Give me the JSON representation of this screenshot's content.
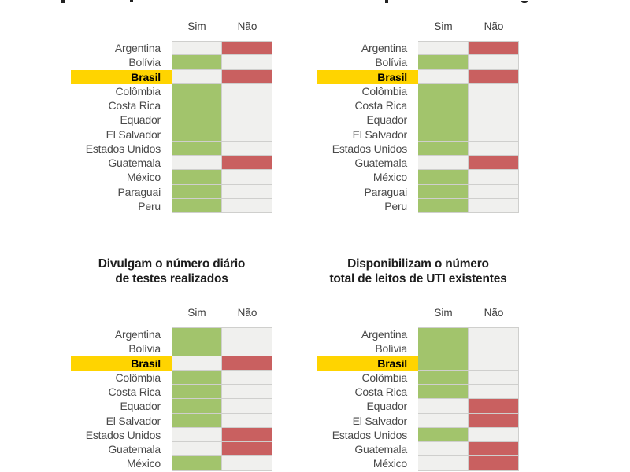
{
  "colors": {
    "yes_green": "#a2c46c",
    "no_red": "#c96060",
    "empty_cell": "#f0f0ee",
    "highlight_yellow": "#ffd400",
    "grid_line": "#cfcfcd",
    "label_text": "#4a4a4a",
    "title_text": "#1d1d1d"
  },
  "col_headers": {
    "yes": "Sim",
    "no": "Não"
  },
  "highlight_country": "Brasil",
  "panels": [
    {
      "id": "top-left",
      "title_lines": [],
      "title_truncated": true,
      "rows": [
        {
          "label": "Argentina",
          "value": "nao"
        },
        {
          "label": "Bolívia",
          "value": "sim"
        },
        {
          "label": "Brasil",
          "value": "nao"
        },
        {
          "label": "Colômbia",
          "value": "sim"
        },
        {
          "label": "Costa Rica",
          "value": "sim"
        },
        {
          "label": "Equador",
          "value": "sim"
        },
        {
          "label": "El Salvador",
          "value": "sim"
        },
        {
          "label": "Estados Unidos",
          "value": "sim"
        },
        {
          "label": "Guatemala",
          "value": "nao"
        },
        {
          "label": "México",
          "value": "sim"
        },
        {
          "label": "Paraguai",
          "value": "sim"
        },
        {
          "label": "Peru",
          "value": "sim"
        }
      ]
    },
    {
      "id": "top-right",
      "title_lines": [],
      "title_truncated": true,
      "rows": [
        {
          "label": "Argentina",
          "value": "nao"
        },
        {
          "label": "Bolívia",
          "value": "sim"
        },
        {
          "label": "Brasil",
          "value": "nao"
        },
        {
          "label": "Colômbia",
          "value": "sim"
        },
        {
          "label": "Costa Rica",
          "value": "sim"
        },
        {
          "label": "Equador",
          "value": "sim"
        },
        {
          "label": "El Salvador",
          "value": "sim"
        },
        {
          "label": "Estados Unidos",
          "value": "sim"
        },
        {
          "label": "Guatemala",
          "value": "nao"
        },
        {
          "label": "México",
          "value": "sim"
        },
        {
          "label": "Paraguai",
          "value": "sim"
        },
        {
          "label": "Peru",
          "value": "sim"
        }
      ]
    },
    {
      "id": "bottom-left",
      "title_lines": [
        "Divulgam o número diário",
        "de testes realizados"
      ],
      "title_truncated": false,
      "rows": [
        {
          "label": "Argentina",
          "value": "sim"
        },
        {
          "label": "Bolívia",
          "value": "sim"
        },
        {
          "label": "Brasil",
          "value": "nao"
        },
        {
          "label": "Colômbia",
          "value": "sim"
        },
        {
          "label": "Costa Rica",
          "value": "sim"
        },
        {
          "label": "Equador",
          "value": "sim"
        },
        {
          "label": "El Salvador",
          "value": "sim"
        },
        {
          "label": "Estados Unidos",
          "value": "nao"
        },
        {
          "label": "Guatemala",
          "value": "nao"
        },
        {
          "label": "México",
          "value": "sim"
        }
      ]
    },
    {
      "id": "bottom-right",
      "title_lines": [
        "Disponibilizam o número",
        "total de leitos de UTI existentes"
      ],
      "title_truncated": false,
      "rows": [
        {
          "label": "Argentina",
          "value": "sim"
        },
        {
          "label": "Bolívia",
          "value": "sim"
        },
        {
          "label": "Brasil",
          "value": "sim"
        },
        {
          "label": "Colômbia",
          "value": "sim"
        },
        {
          "label": "Costa Rica",
          "value": "sim"
        },
        {
          "label": "Equador",
          "value": "nao"
        },
        {
          "label": "El Salvador",
          "value": "nao"
        },
        {
          "label": "Estados Unidos",
          "value": "sim"
        },
        {
          "label": "Guatemala",
          "value": "nao"
        },
        {
          "label": "México",
          "value": "nao"
        }
      ]
    }
  ],
  "chart_data": [
    {
      "type": "heatmap",
      "title": "",
      "title_note": "title cropped out of frame at top",
      "columns": [
        "Sim",
        "Não"
      ],
      "categories": [
        "Argentina",
        "Bolívia",
        "Brasil",
        "Colômbia",
        "Costa Rica",
        "Equador",
        "El Salvador",
        "Estados Unidos",
        "Guatemala",
        "México",
        "Paraguai",
        "Peru"
      ],
      "answers": [
        "Não",
        "Sim",
        "Não",
        "Sim",
        "Sim",
        "Sim",
        "Sim",
        "Sim",
        "Não",
        "Sim",
        "Sim",
        "Sim"
      ],
      "highlighted_category": "Brasil",
      "cell_colors": {
        "Sim": "#a2c46c",
        "Não": "#c96060"
      },
      "legend_position": "column headers above grid"
    },
    {
      "type": "heatmap",
      "title": "",
      "title_note": "title cropped out of frame at top",
      "columns": [
        "Sim",
        "Não"
      ],
      "categories": [
        "Argentina",
        "Bolívia",
        "Brasil",
        "Colômbia",
        "Costa Rica",
        "Equador",
        "El Salvador",
        "Estados Unidos",
        "Guatemala",
        "México",
        "Paraguai",
        "Peru"
      ],
      "answers": [
        "Não",
        "Sim",
        "Não",
        "Sim",
        "Sim",
        "Sim",
        "Sim",
        "Sim",
        "Não",
        "Sim",
        "Sim",
        "Sim"
      ],
      "highlighted_category": "Brasil",
      "cell_colors": {
        "Sim": "#a2c46c",
        "Não": "#c96060"
      },
      "legend_position": "column headers above grid"
    },
    {
      "type": "heatmap",
      "title": "Divulgam o número diário de testes realizados",
      "columns": [
        "Sim",
        "Não"
      ],
      "categories": [
        "Argentina",
        "Bolívia",
        "Brasil",
        "Colômbia",
        "Costa Rica",
        "Equador",
        "El Salvador",
        "Estados Unidos",
        "Guatemala",
        "México"
      ],
      "answers": [
        "Sim",
        "Sim",
        "Não",
        "Sim",
        "Sim",
        "Sim",
        "Sim",
        "Não",
        "Não",
        "Sim"
      ],
      "highlighted_category": "Brasil",
      "cell_colors": {
        "Sim": "#a2c46c",
        "Não": "#c96060"
      },
      "note": "rows below México cropped at bottom of frame",
      "legend_position": "column headers above grid"
    },
    {
      "type": "heatmap",
      "title": "Disponibilizam o número total de leitos de UTI existentes",
      "columns": [
        "Sim",
        "Não"
      ],
      "categories": [
        "Argentina",
        "Bolívia",
        "Brasil",
        "Colômbia",
        "Costa Rica",
        "Equador",
        "El Salvador",
        "Estados Unidos",
        "Guatemala",
        "México"
      ],
      "answers": [
        "Sim",
        "Sim",
        "Sim",
        "Sim",
        "Sim",
        "Não",
        "Não",
        "Sim",
        "Não",
        "Não"
      ],
      "highlighted_category": "Brasil",
      "cell_colors": {
        "Sim": "#a2c46c",
        "Não": "#c96060"
      },
      "note": "rows below México cropped at bottom of frame",
      "legend_position": "column headers above grid"
    }
  ]
}
